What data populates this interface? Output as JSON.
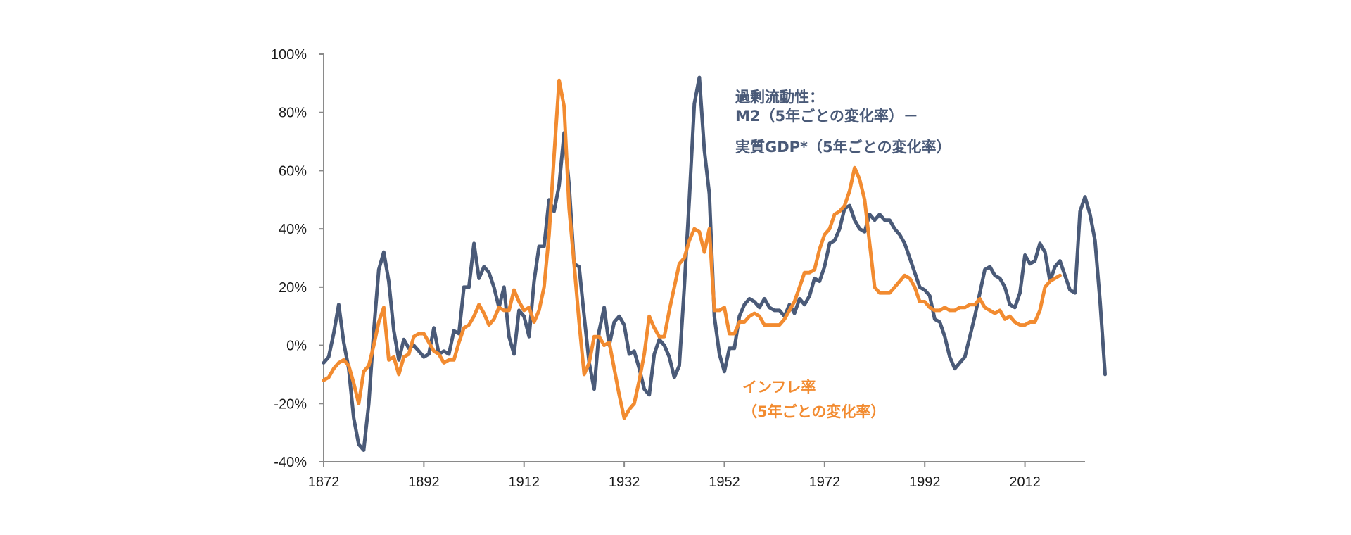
{
  "chart_data": {
    "type": "line",
    "title": "",
    "xlabel": "",
    "ylabel": "",
    "xlim": [
      1872,
      2024
    ],
    "ylim": [
      -40,
      100
    ],
    "x_ticks": [
      1872,
      1892,
      1912,
      1932,
      1952,
      1972,
      1992,
      2012
    ],
    "x_tick_labels": [
      "1872",
      "1892",
      "1912",
      "1932",
      "1952",
      "1972",
      "1992",
      "2012"
    ],
    "y_ticks": [
      100,
      80,
      60,
      40,
      20,
      0,
      -20,
      -40
    ],
    "y_tick_labels": [
      "100%",
      "80%",
      "60%",
      "40%",
      "20%",
      "0%",
      "-20%",
      "-40%"
    ],
    "grid": false,
    "series": [
      {
        "name": "excess_liquidity",
        "label_lines": [
          "過剰流動性：",
          "M2（5年ごとの変化率）－",
          "実質GDP*（5年ごとの変化率）"
        ],
        "color": "#4a5a78",
        "points": [
          [
            1872,
            -6
          ],
          [
            1873,
            -4
          ],
          [
            1874,
            4
          ],
          [
            1875,
            14
          ],
          [
            1876,
            1
          ],
          [
            1877,
            -8
          ],
          [
            1878,
            -25
          ],
          [
            1879,
            -34
          ],
          [
            1880,
            -36
          ],
          [
            1881,
            -20
          ],
          [
            1882,
            5
          ],
          [
            1883,
            26
          ],
          [
            1884,
            32
          ],
          [
            1885,
            22
          ],
          [
            1886,
            5
          ],
          [
            1887,
            -5
          ],
          [
            1888,
            2
          ],
          [
            1889,
            -1
          ],
          [
            1890,
            0
          ],
          [
            1891,
            -2
          ],
          [
            1892,
            -4
          ],
          [
            1893,
            -3
          ],
          [
            1894,
            6
          ],
          [
            1895,
            -3
          ],
          [
            1896,
            -2
          ],
          [
            1897,
            -3
          ],
          [
            1898,
            5
          ],
          [
            1899,
            4
          ],
          [
            1900,
            20
          ],
          [
            1901,
            20
          ],
          [
            1902,
            35
          ],
          [
            1903,
            23
          ],
          [
            1904,
            27
          ],
          [
            1905,
            25
          ],
          [
            1906,
            20
          ],
          [
            1907,
            13
          ],
          [
            1908,
            20
          ],
          [
            1909,
            3
          ],
          [
            1910,
            -3
          ],
          [
            1911,
            12
          ],
          [
            1912,
            10
          ],
          [
            1913,
            3
          ],
          [
            1914,
            22
          ],
          [
            1915,
            34
          ],
          [
            1916,
            34
          ],
          [
            1917,
            50
          ],
          [
            1918,
            46
          ],
          [
            1919,
            55
          ],
          [
            1920,
            73
          ],
          [
            1921,
            55
          ],
          [
            1922,
            28
          ],
          [
            1923,
            27
          ],
          [
            1924,
            10
          ],
          [
            1925,
            -6
          ],
          [
            1926,
            -15
          ],
          [
            1927,
            5
          ],
          [
            1928,
            13
          ],
          [
            1929,
            0
          ],
          [
            1930,
            8
          ],
          [
            1931,
            10
          ],
          [
            1932,
            7
          ],
          [
            1933,
            -3
          ],
          [
            1934,
            -2
          ],
          [
            1935,
            -8
          ],
          [
            1936,
            -15
          ],
          [
            1937,
            -17
          ],
          [
            1938,
            -3
          ],
          [
            1939,
            2
          ],
          [
            1940,
            0
          ],
          [
            1941,
            -4
          ],
          [
            1942,
            -11
          ],
          [
            1943,
            -7
          ],
          [
            1944,
            20
          ],
          [
            1945,
            50
          ],
          [
            1946,
            83
          ],
          [
            1947,
            92
          ],
          [
            1948,
            67
          ],
          [
            1949,
            52
          ],
          [
            1950,
            10
          ],
          [
            1951,
            -3
          ],
          [
            1952,
            -9
          ],
          [
            1953,
            -1
          ],
          [
            1954,
            -1
          ],
          [
            1955,
            10
          ],
          [
            1956,
            14
          ],
          [
            1957,
            16
          ],
          [
            1958,
            15
          ],
          [
            1959,
            13
          ],
          [
            1960,
            16
          ],
          [
            1961,
            13
          ],
          [
            1962,
            12
          ],
          [
            1963,
            12
          ],
          [
            1964,
            10
          ],
          [
            1965,
            14
          ],
          [
            1966,
            11
          ],
          [
            1967,
            16
          ],
          [
            1968,
            14
          ],
          [
            1969,
            17
          ],
          [
            1970,
            23
          ],
          [
            1971,
            22
          ],
          [
            1972,
            27
          ],
          [
            1973,
            35
          ],
          [
            1974,
            36
          ],
          [
            1975,
            40
          ],
          [
            1976,
            47
          ],
          [
            1977,
            48
          ],
          [
            1978,
            43
          ],
          [
            1979,
            40
          ],
          [
            1980,
            39
          ],
          [
            1981,
            45
          ],
          [
            1982,
            43
          ],
          [
            1983,
            45
          ],
          [
            1984,
            43
          ],
          [
            1985,
            43
          ],
          [
            1986,
            40
          ],
          [
            1987,
            38
          ],
          [
            1988,
            35
          ],
          [
            1989,
            30
          ],
          [
            1990,
            25
          ],
          [
            1991,
            20
          ],
          [
            1992,
            19
          ],
          [
            1993,
            17
          ],
          [
            1994,
            9
          ],
          [
            1995,
            8
          ],
          [
            1996,
            3
          ],
          [
            1997,
            -4
          ],
          [
            1998,
            -8
          ],
          [
            1999,
            -6
          ],
          [
            2000,
            -4
          ],
          [
            2001,
            3
          ],
          [
            2002,
            10
          ],
          [
            2003,
            18
          ],
          [
            2004,
            26
          ],
          [
            2005,
            27
          ],
          [
            2006,
            24
          ],
          [
            2007,
            23
          ],
          [
            2008,
            20
          ],
          [
            2009,
            14
          ],
          [
            2010,
            13
          ],
          [
            2011,
            18
          ],
          [
            2012,
            31
          ],
          [
            2013,
            28
          ],
          [
            2014,
            29
          ],
          [
            2015,
            35
          ],
          [
            2016,
            32
          ],
          [
            2017,
            22
          ],
          [
            2018,
            27
          ],
          [
            2019,
            29
          ],
          [
            2020,
            24
          ],
          [
            2021,
            19
          ],
          [
            2022,
            18
          ],
          [
            2023,
            46
          ],
          [
            2024,
            51
          ],
          [
            2025,
            45
          ],
          [
            2026,
            36
          ],
          [
            2027,
            15
          ],
          [
            2028,
            -10
          ]
        ]
      },
      {
        "name": "inflation",
        "label_lines": [
          "インフレ率",
          "（5年ごとの変化率）"
        ],
        "color": "#f28b30",
        "points": [
          [
            1872,
            -12
          ],
          [
            1873,
            -11
          ],
          [
            1874,
            -8
          ],
          [
            1875,
            -6
          ],
          [
            1876,
            -5
          ],
          [
            1877,
            -7
          ],
          [
            1878,
            -13
          ],
          [
            1879,
            -20
          ],
          [
            1880,
            -9
          ],
          [
            1881,
            -7
          ],
          [
            1882,
            0
          ],
          [
            1883,
            8
          ],
          [
            1884,
            13
          ],
          [
            1885,
            -5
          ],
          [
            1886,
            -4
          ],
          [
            1887,
            -10
          ],
          [
            1888,
            -4
          ],
          [
            1889,
            -3
          ],
          [
            1890,
            3
          ],
          [
            1891,
            4
          ],
          [
            1892,
            4
          ],
          [
            1893,
            1
          ],
          [
            1894,
            -2
          ],
          [
            1895,
            -3
          ],
          [
            1896,
            -6
          ],
          [
            1897,
            -5
          ],
          [
            1898,
            -5
          ],
          [
            1899,
            1
          ],
          [
            1900,
            6
          ],
          [
            1901,
            7
          ],
          [
            1902,
            10
          ],
          [
            1903,
            14
          ],
          [
            1904,
            11
          ],
          [
            1905,
            7
          ],
          [
            1906,
            9
          ],
          [
            1907,
            13
          ],
          [
            1908,
            12
          ],
          [
            1909,
            12
          ],
          [
            1910,
            19
          ],
          [
            1911,
            15
          ],
          [
            1912,
            12
          ],
          [
            1913,
            13
          ],
          [
            1914,
            8
          ],
          [
            1915,
            12
          ],
          [
            1916,
            20
          ],
          [
            1917,
            38
          ],
          [
            1918,
            65
          ],
          [
            1919,
            91
          ],
          [
            1920,
            82
          ],
          [
            1921,
            47
          ],
          [
            1922,
            28
          ],
          [
            1923,
            8
          ],
          [
            1924,
            -10
          ],
          [
            1925,
            -6
          ],
          [
            1926,
            3
          ],
          [
            1927,
            3
          ],
          [
            1928,
            0
          ],
          [
            1929,
            1
          ],
          [
            1930,
            -8
          ],
          [
            1931,
            -17
          ],
          [
            1932,
            -25
          ],
          [
            1933,
            -22
          ],
          [
            1934,
            -20
          ],
          [
            1935,
            -12
          ],
          [
            1936,
            -3
          ],
          [
            1937,
            10
          ],
          [
            1938,
            6
          ],
          [
            1939,
            3
          ],
          [
            1940,
            3
          ],
          [
            1941,
            12
          ],
          [
            1942,
            20
          ],
          [
            1943,
            28
          ],
          [
            1944,
            30
          ],
          [
            1945,
            36
          ],
          [
            1946,
            40
          ],
          [
            1947,
            39
          ],
          [
            1948,
            32
          ],
          [
            1949,
            40
          ],
          [
            1950,
            12
          ],
          [
            1951,
            12
          ],
          [
            1952,
            13
          ],
          [
            1953,
            4
          ],
          [
            1954,
            4
          ],
          [
            1955,
            8
          ],
          [
            1956,
            8
          ],
          [
            1957,
            10
          ],
          [
            1958,
            11
          ],
          [
            1959,
            10
          ],
          [
            1960,
            7
          ],
          [
            1961,
            7
          ],
          [
            1962,
            7
          ],
          [
            1963,
            7
          ],
          [
            1964,
            9
          ],
          [
            1965,
            12
          ],
          [
            1966,
            15
          ],
          [
            1967,
            20
          ],
          [
            1968,
            25
          ],
          [
            1969,
            25
          ],
          [
            1970,
            26
          ],
          [
            1971,
            33
          ],
          [
            1972,
            38
          ],
          [
            1973,
            40
          ],
          [
            1974,
            45
          ],
          [
            1975,
            46
          ],
          [
            1976,
            48
          ],
          [
            1977,
            53
          ],
          [
            1978,
            61
          ],
          [
            1979,
            57
          ],
          [
            1980,
            50
          ],
          [
            1981,
            35
          ],
          [
            1982,
            20
          ],
          [
            1983,
            18
          ],
          [
            1984,
            18
          ],
          [
            1985,
            18
          ],
          [
            1986,
            20
          ],
          [
            1987,
            22
          ],
          [
            1988,
            24
          ],
          [
            1989,
            23
          ],
          [
            1990,
            20
          ],
          [
            1991,
            15
          ],
          [
            1992,
            15
          ],
          [
            1993,
            13
          ],
          [
            1994,
            12
          ],
          [
            1995,
            12
          ],
          [
            1996,
            13
          ],
          [
            1997,
            12
          ],
          [
            1998,
            12
          ],
          [
            1999,
            13
          ],
          [
            2000,
            13
          ],
          [
            2001,
            14
          ],
          [
            2002,
            14
          ],
          [
            2003,
            16
          ],
          [
            2004,
            13
          ],
          [
            2005,
            12
          ],
          [
            2006,
            11
          ],
          [
            2007,
            12
          ],
          [
            2008,
            9
          ],
          [
            2009,
            10
          ],
          [
            2010,
            8
          ],
          [
            2011,
            7
          ],
          [
            2012,
            7
          ],
          [
            2013,
            8
          ],
          [
            2014,
            8
          ],
          [
            2015,
            12
          ],
          [
            2016,
            20
          ],
          [
            2017,
            22
          ],
          [
            2018,
            23
          ],
          [
            2019,
            24
          ]
        ]
      }
    ]
  }
}
